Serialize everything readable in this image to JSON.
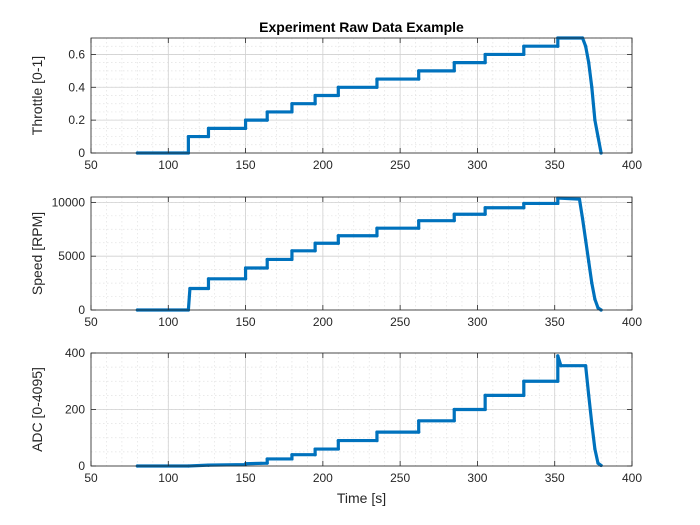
{
  "chart_data": [
    {
      "type": "line",
      "title": "Experiment Raw Data Example",
      "xlabel": "",
      "ylabel": "Throttle [0-1]",
      "xlim": [
        50,
        400
      ],
      "ylim": [
        0,
        0.7
      ],
      "xticks": [
        50,
        100,
        150,
        200,
        250,
        300,
        350,
        400
      ],
      "yticks": [
        0,
        0.2,
        0.4,
        0.6
      ],
      "grid": true,
      "minor_grid": true,
      "color": "#0072BD",
      "series": [
        {
          "x": [
            80,
            113,
            113,
            126,
            126,
            150,
            150,
            164,
            164,
            180,
            180,
            195,
            195,
            210,
            210,
            235,
            235,
            262,
            262,
            285,
            285,
            305,
            305,
            330,
            330,
            352,
            352,
            368,
            370,
            372,
            374,
            376,
            378,
            380
          ],
          "y": [
            0,
            0,
            0.1,
            0.1,
            0.15,
            0.15,
            0.2,
            0.2,
            0.25,
            0.25,
            0.3,
            0.3,
            0.35,
            0.35,
            0.4,
            0.4,
            0.45,
            0.45,
            0.5,
            0.5,
            0.55,
            0.55,
            0.6,
            0.6,
            0.65,
            0.65,
            0.7,
            0.7,
            0.65,
            0.55,
            0.4,
            0.2,
            0.1,
            0
          ]
        }
      ]
    },
    {
      "type": "line",
      "title": "",
      "xlabel": "",
      "ylabel": "Speed [RPM]",
      "xlim": [
        50,
        400
      ],
      "ylim": [
        0,
        10500
      ],
      "xticks": [
        50,
        100,
        150,
        200,
        250,
        300,
        350,
        400
      ],
      "yticks": [
        0,
        5000,
        10000
      ],
      "grid": true,
      "minor_grid": true,
      "color": "#0072BD",
      "series": [
        {
          "x": [
            80,
            113,
            114,
            126,
            126,
            150,
            150,
            164,
            164,
            180,
            180,
            195,
            195,
            210,
            210,
            235,
            235,
            262,
            262,
            285,
            285,
            305,
            305,
            330,
            330,
            352,
            352,
            366,
            368,
            370,
            372,
            374,
            376,
            378,
            380
          ],
          "y": [
            0,
            0,
            2000,
            2000,
            2900,
            2900,
            3900,
            3900,
            4700,
            4700,
            5500,
            5500,
            6200,
            6200,
            6900,
            6900,
            7600,
            7600,
            8300,
            8300,
            8900,
            8900,
            9500,
            9500,
            9900,
            9900,
            10400,
            10300,
            8500,
            6500,
            4500,
            2500,
            1000,
            200,
            0
          ]
        }
      ]
    },
    {
      "type": "line",
      "title": "",
      "xlabel": "Time [s]",
      "ylabel": "ADC [0-4095]",
      "xlim": [
        50,
        400
      ],
      "ylim": [
        0,
        400
      ],
      "xticks": [
        50,
        100,
        150,
        200,
        250,
        300,
        350,
        400
      ],
      "yticks": [
        0,
        200,
        400
      ],
      "grid": true,
      "minor_grid": true,
      "color": "#0072BD",
      "series": [
        {
          "x": [
            80,
            113,
            126,
            126,
            150,
            150,
            164,
            164,
            180,
            180,
            195,
            195,
            210,
            210,
            235,
            235,
            262,
            262,
            285,
            285,
            305,
            305,
            330,
            330,
            352,
            352,
            354,
            370,
            372,
            374,
            376,
            378,
            380
          ],
          "y": [
            0,
            0,
            3,
            3,
            5,
            8,
            10,
            25,
            25,
            40,
            40,
            60,
            60,
            90,
            90,
            120,
            120,
            160,
            160,
            200,
            200,
            250,
            250,
            300,
            300,
            390,
            355,
            355,
            250,
            150,
            60,
            10,
            2
          ]
        }
      ]
    }
  ]
}
